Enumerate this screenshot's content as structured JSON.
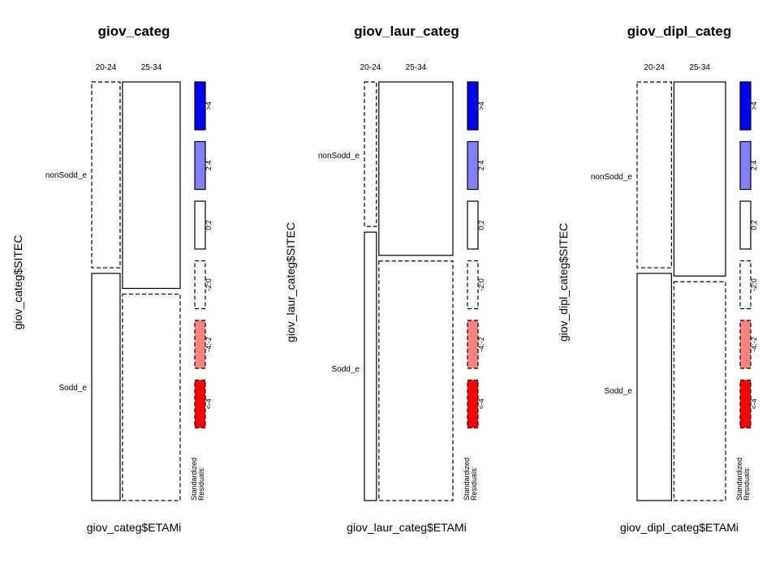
{
  "chart_data": [
    {
      "type": "mosaic",
      "title": "giov_categ",
      "xlabel": "giov_categ$ETAMi",
      "ylabel": "giov_categ$SITEC",
      "columns": [
        "20-24",
        "25-34"
      ],
      "rows": [
        "nonSodd_e",
        "Sodd_e"
      ],
      "column_proportions": [
        0.33,
        0.67
      ],
      "row_proportions_within_column": [
        [
          0.45,
          0.55
        ],
        [
          0.5,
          0.5
        ]
      ],
      "residual_style": [
        [
          "dashed",
          "solid"
        ],
        [
          "solid",
          "dashed"
        ]
      ]
    },
    {
      "type": "mosaic",
      "title": "giov_laur_categ",
      "xlabel": "giov_laur_categ$ETAMi",
      "ylabel": "giov_laur_categ$SITEC",
      "columns": [
        "20-24",
        "25-34"
      ],
      "rows": [
        "nonSodd_e",
        "Sodd_e"
      ],
      "column_proportions": [
        0.14,
        0.86
      ],
      "row_proportions_within_column": [
        [
          0.35,
          0.65
        ],
        [
          0.42,
          0.58
        ]
      ],
      "residual_style": [
        [
          "dashed",
          "solid"
        ],
        [
          "solid",
          "dashed"
        ]
      ]
    },
    {
      "type": "mosaic",
      "title": "giov_dipl_categ",
      "xlabel": "giov_dipl_categ$ETAMi",
      "ylabel": "giov_dipl_categ$SITEC",
      "columns": [
        "20-24",
        "25-34"
      ],
      "rows": [
        "nonSodd_e",
        "Sodd_e"
      ],
      "column_proportions": [
        0.4,
        0.6
      ],
      "row_proportions_within_column": [
        [
          0.45,
          0.55
        ],
        [
          0.47,
          0.53
        ]
      ],
      "residual_style": [
        [
          "dashed",
          "solid"
        ],
        [
          "solid",
          "dashed"
        ]
      ]
    }
  ],
  "legend": {
    "title": "Standardized\nResiduals:",
    "title_lines": [
      "Standardized",
      "Residuals:"
    ],
    "items": [
      {
        "label": ">4",
        "color": "#0000FF",
        "border": "solid"
      },
      {
        "label": "2:4",
        "color": "#8080FF",
        "border": "solid"
      },
      {
        "label": "0:2",
        "color": "#FFFFFF",
        "border": "solid"
      },
      {
        "label": "-2:0",
        "color": "#FFFFFF",
        "border": "dashed"
      },
      {
        "label": "-4:-2",
        "color": "#FF8080",
        "border": "dashed"
      },
      {
        "label": "<-4",
        "color": "#FF0000",
        "border": "dashed"
      }
    ]
  }
}
